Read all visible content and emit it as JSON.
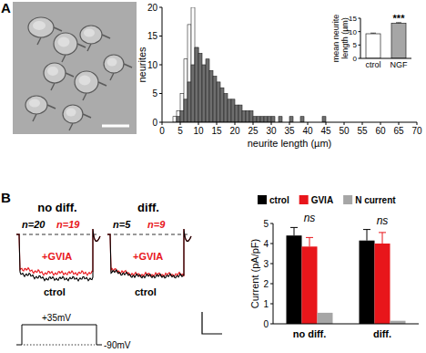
{
  "chart_data": [
    {
      "type": "histogram",
      "x_label": "neurite length (µm)",
      "y_label": "neurites",
      "bins": [
        0,
        1,
        2,
        3,
        4,
        5,
        6,
        7,
        8,
        9,
        10,
        11,
        12,
        13,
        14,
        15,
        16,
        17,
        18,
        19,
        20,
        21,
        22,
        23,
        24,
        25,
        26,
        27,
        28,
        29,
        30,
        31,
        32,
        33,
        34,
        35,
        36,
        37,
        38,
        39,
        40,
        41,
        42,
        43,
        44,
        45,
        46,
        47,
        48,
        49,
        50,
        51,
        52,
        53,
        54,
        55,
        56,
        57,
        58,
        59,
        60,
        61,
        62,
        63,
        64,
        65,
        66,
        67,
        68,
        69,
        70
      ],
      "series": [
        {
          "color": "#ffffff",
          "values": [
            0,
            0,
            0,
            1,
            2,
            5,
            11,
            17,
            20,
            13,
            8,
            5,
            3,
            2,
            1,
            1,
            1,
            0,
            1,
            0,
            0,
            0,
            0,
            0,
            0,
            0,
            0,
            0,
            0,
            0,
            0,
            0,
            0,
            0,
            0,
            0,
            0,
            0,
            0,
            0,
            0,
            0,
            0,
            0,
            0,
            0,
            0,
            0,
            0,
            0,
            0,
            0,
            0,
            0,
            0,
            0,
            0,
            0,
            0,
            0,
            0,
            0,
            0,
            0,
            0,
            0,
            0,
            0,
            0,
            0
          ]
        },
        {
          "color": "#6e6e6e",
          "values": [
            0,
            0,
            0,
            0,
            1,
            2,
            4,
            7,
            10,
            13,
            12,
            10,
            11,
            9,
            8,
            7,
            6,
            5,
            4,
            4,
            3,
            3,
            2,
            2,
            2,
            1,
            1,
            1,
            1,
            1,
            1,
            0,
            1,
            0,
            0,
            1,
            0,
            0,
            1,
            0,
            0,
            0,
            0,
            0,
            1,
            0,
            0,
            0,
            0,
            0,
            0,
            0,
            0,
            0,
            0,
            0,
            0,
            0,
            0,
            0,
            0,
            0,
            0,
            0,
            0,
            0,
            0,
            0,
            0,
            0
          ]
        }
      ],
      "xlim": [
        0,
        70
      ],
      "xticks": [
        0,
        5,
        10,
        15,
        20,
        25,
        30,
        35,
        40,
        45,
        50,
        55,
        60,
        65,
        70
      ],
      "ylim": [
        0,
        20
      ],
      "yticks": [
        0,
        5,
        10,
        15,
        20
      ],
      "grid": false
    },
    {
      "type": "bar",
      "y_label": [
        "mean neurite",
        "length (µm)"
      ],
      "categories": [
        "ctrol",
        "NGF"
      ],
      "values": [
        9.2,
        13.1
      ],
      "errors": [
        0.25,
        0.25
      ],
      "colors": [
        "#ffffff",
        "#a6a6a6"
      ],
      "ylim": [
        0,
        15
      ],
      "yticks": [
        0,
        5,
        10,
        15
      ],
      "grid": false,
      "annotations": [
        {
          "category": "NGF",
          "text": "***"
        }
      ]
    },
    {
      "type": "bar",
      "y_label": "Current (pA/pF)",
      "categories": [
        "no diff.",
        "diff."
      ],
      "series": [
        {
          "name": "ctrol",
          "color": "#000000",
          "values": [
            4.4,
            4.15
          ],
          "errors": [
            0.4,
            0.55
          ]
        },
        {
          "name": "GVIA",
          "color": "#e8161b",
          "values": [
            3.85,
            4.0
          ],
          "errors": [
            0.45,
            0.55
          ]
        },
        {
          "name": "N current",
          "color": "#a6a6a6",
          "values": [
            0.55,
            0.15
          ]
        }
      ],
      "ylim": [
        0,
        5
      ],
      "yticks": [
        0,
        1,
        2,
        3,
        4,
        5
      ],
      "grid": false,
      "legend": "top",
      "annotations": [
        {
          "category": "no diff.",
          "text": "ns"
        },
        {
          "category": "diff.",
          "text": "ns"
        }
      ]
    }
  ],
  "figure": {
    "panel_labels": [
      "A",
      "B"
    ],
    "trace_panels": [
      {
        "title": "no diff.",
        "n_labels": [
          {
            "text": "n=20",
            "color": "#000000"
          },
          {
            "text": "n=19",
            "color": "#e8161b"
          }
        ],
        "drug": "+GVIA",
        "control": "ctrol"
      },
      {
        "title": "diff.",
        "n_labels": [
          {
            "text": "n=5",
            "color": "#000000"
          },
          {
            "text": "n=9",
            "color": "#e8161b"
          }
        ],
        "drug": "+GVIA",
        "control": "ctrol"
      }
    ],
    "protocol": {
      "step": "+35mV",
      "hold": "-90mV"
    }
  }
}
